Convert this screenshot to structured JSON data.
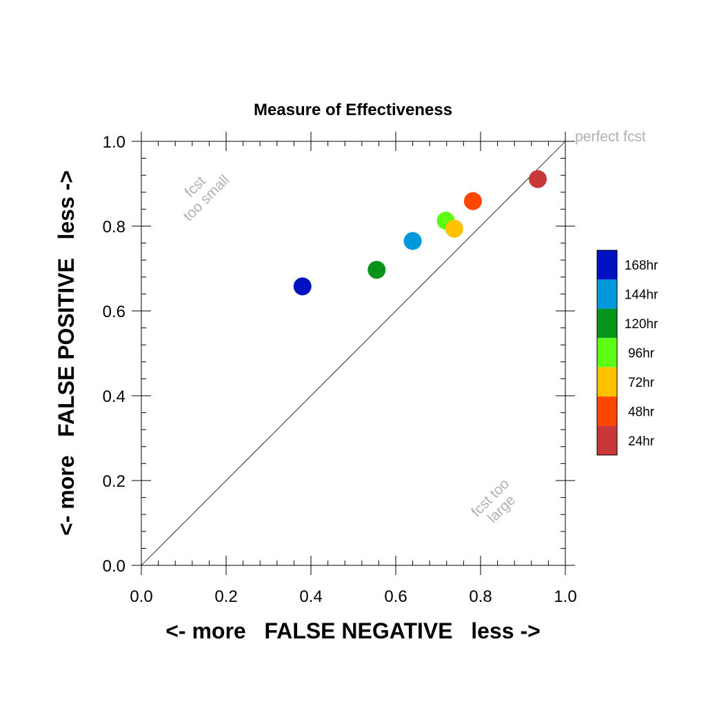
{
  "chart_data": {
    "type": "scatter",
    "title": "Measure of Effectiveness",
    "xlabel": "<- more   FALSE NEGATIVE   less ->",
    "ylabel": "<- more   FALSE POSITIVE   less ->",
    "xlim": [
      0.0,
      1.0
    ],
    "ylim": [
      0.0,
      1.0
    ],
    "xticks": [
      "0.0",
      "0.2",
      "0.4",
      "0.6",
      "0.8",
      "1.0"
    ],
    "yticks": [
      "0.0",
      "0.2",
      "0.4",
      "0.6",
      "0.8",
      "1.0"
    ],
    "grid": false,
    "diagonal_line": true,
    "legend_position": "right",
    "annotations": {
      "perfect": "perfect fcst",
      "too_small": [
        "fcst",
        "too small"
      ],
      "too_large": [
        "fcst too",
        "large"
      ]
    },
    "series": [
      {
        "name": "168hr",
        "color": "#0011c2",
        "x": 0.38,
        "y": 0.658
      },
      {
        "name": "144hr",
        "color": "#0097db",
        "x": 0.64,
        "y": 0.765
      },
      {
        "name": "120hr",
        "color": "#08931b",
        "x": 0.555,
        "y": 0.697
      },
      {
        "name": "96hr",
        "color": "#5cff14",
        "x": 0.718,
        "y": 0.813
      },
      {
        "name": "72hr",
        "color": "#ffc100",
        "x": 0.738,
        "y": 0.794
      },
      {
        "name": "48hr",
        "color": "#ff4600",
        "x": 0.782,
        "y": 0.859
      },
      {
        "name": "24hr",
        "color": "#c93838",
        "x": 0.935,
        "y": 0.911
      }
    ]
  }
}
